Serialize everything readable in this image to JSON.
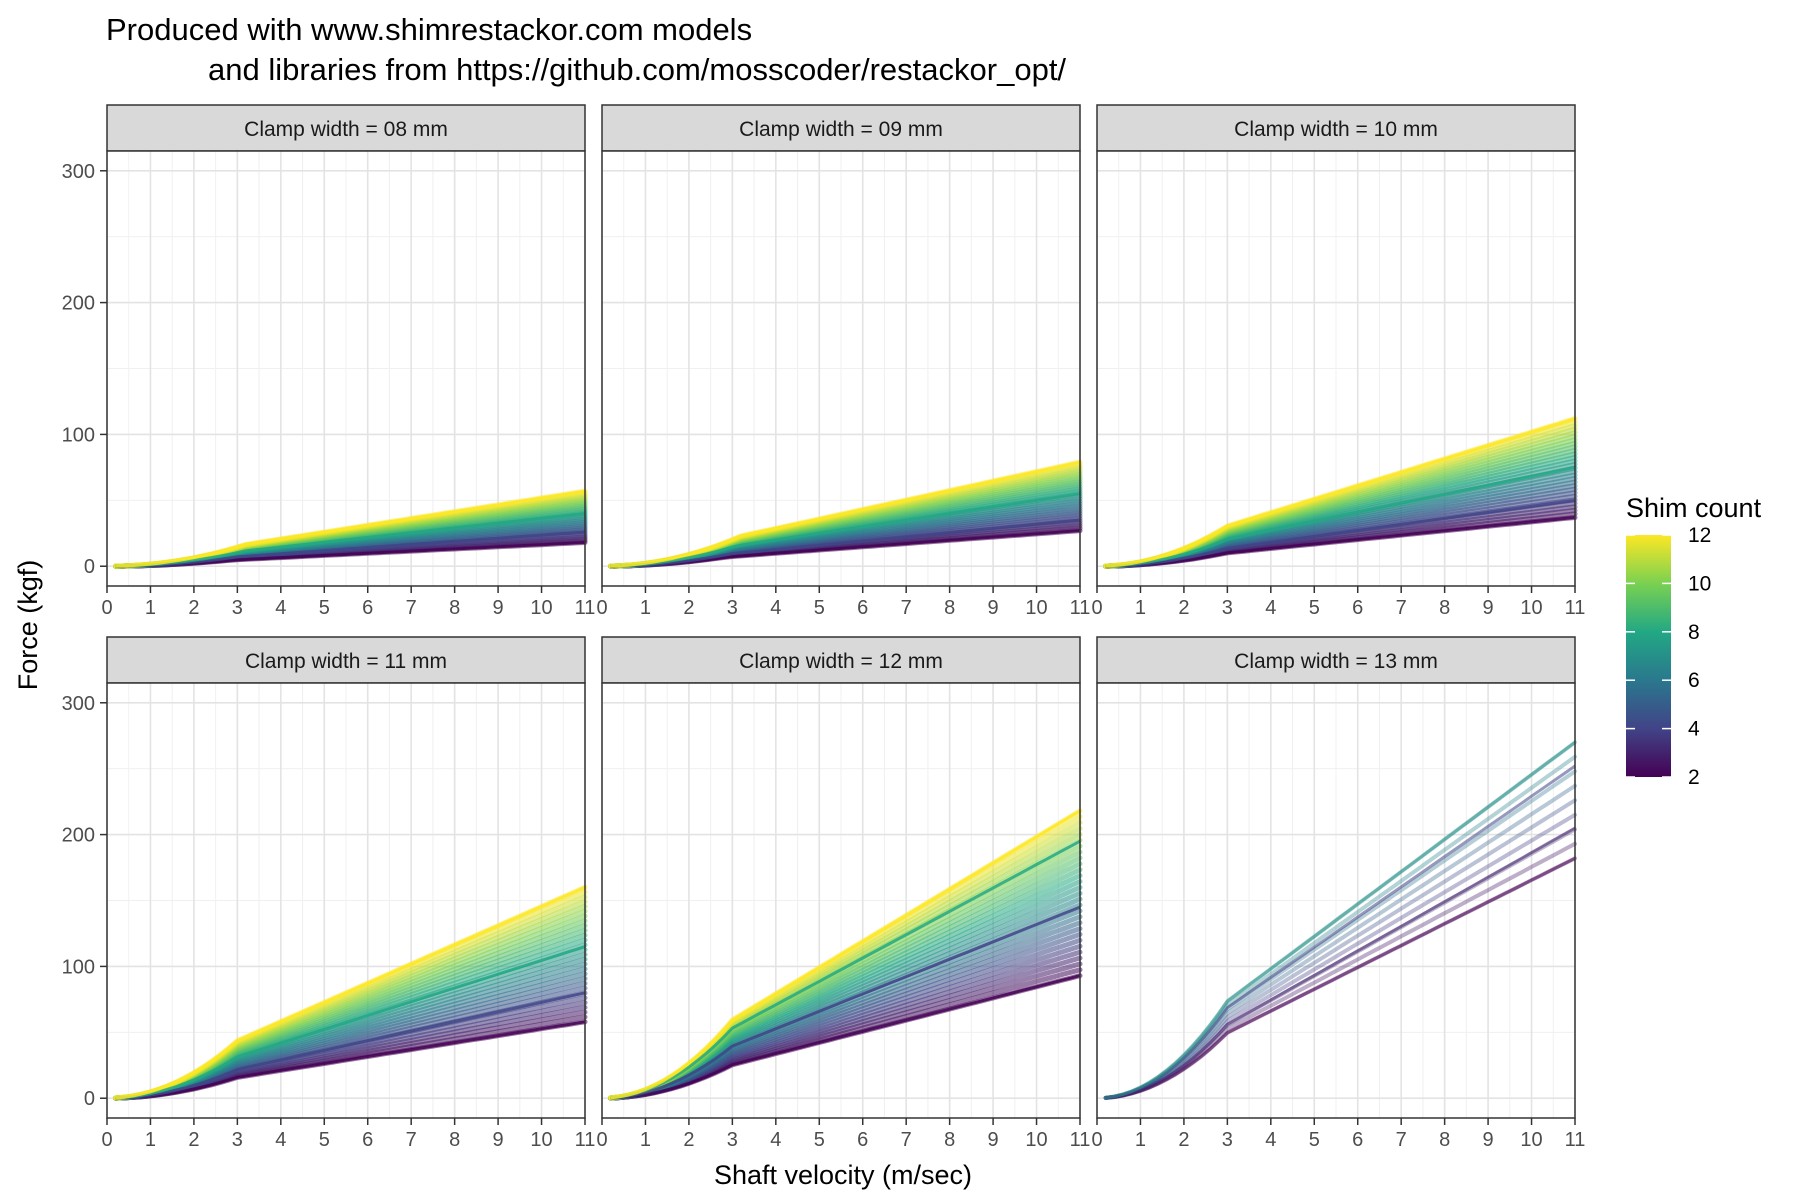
{
  "title_line1": "Produced with www.shimrestackor.com models",
  "title_line2": "and libraries from https://github.com/mosscoder/restackor_opt/",
  "chart_data": {
    "type": "line",
    "xlabel": "Shaft velocity (m/sec)",
    "ylabel": "Force (kgf)",
    "xlim": [
      0,
      11
    ],
    "ylim": [
      -15,
      315
    ],
    "x_ticks": [
      "0",
      "1",
      "2",
      "3",
      "4",
      "5",
      "6",
      "7",
      "8",
      "9",
      "10",
      "11"
    ],
    "y_ticks": [
      "0",
      "100",
      "200",
      "300"
    ],
    "grid": true,
    "legend": {
      "title": "Shim count",
      "position": "right",
      "labels": [
        "12",
        "10",
        "8",
        "6",
        "4",
        "2"
      ],
      "range": [
        2,
        12
      ],
      "colors": [
        "#fde725",
        "#7ad151",
        "#22a884",
        "#2a788e",
        "#414487",
        "#440154"
      ]
    },
    "facets": [
      {
        "label": "Clamp width =  08  mm",
        "curves": [
          {
            "shim": 12,
            "knee": 3.2,
            "end": 57
          },
          {
            "shim": 8,
            "knee": 3.2,
            "end": 40
          },
          {
            "shim": 4,
            "knee": 3.0,
            "end": 26
          },
          {
            "shim": 2,
            "knee": 2.9,
            "end": 18
          }
        ]
      },
      {
        "label": "Clamp width =  09  mm",
        "curves": [
          {
            "shim": 12,
            "knee": 3.2,
            "end": 79
          },
          {
            "shim": 8,
            "knee": 3.1,
            "end": 55
          },
          {
            "shim": 4,
            "knee": 3.0,
            "end": 35
          },
          {
            "shim": 2,
            "knee": 2.9,
            "end": 27
          }
        ]
      },
      {
        "label": "Clamp width =  10  mm",
        "curves": [
          {
            "shim": 12,
            "knee": 3.0,
            "end": 112
          },
          {
            "shim": 8,
            "knee": 3.0,
            "end": 75
          },
          {
            "shim": 4,
            "knee": 3.0,
            "end": 50
          },
          {
            "shim": 2,
            "knee": 3.0,
            "end": 37
          }
        ]
      },
      {
        "label": "Clamp width =  11  mm",
        "curves": [
          {
            "shim": 12,
            "knee": 3.0,
            "end": 160
          },
          {
            "shim": 8,
            "knee": 3.0,
            "end": 115
          },
          {
            "shim": 4,
            "knee": 3.0,
            "end": 80
          },
          {
            "shim": 2,
            "knee": 3.0,
            "end": 58
          }
        ]
      },
      {
        "label": "Clamp width =  12  mm",
        "curves": [
          {
            "shim": 12,
            "knee": 3.0,
            "end": 218
          },
          {
            "shim": 8,
            "knee": 3.0,
            "end": 195
          },
          {
            "shim": 4,
            "knee": 3.0,
            "end": 145
          },
          {
            "shim": 2,
            "knee": 3.0,
            "end": 93
          }
        ]
      },
      {
        "label": "Clamp width =  13  mm",
        "curves": [
          {
            "shim": 7,
            "knee": 3.0,
            "end": 270
          },
          {
            "shim": 4,
            "knee": 3.0,
            "end": 252
          },
          {
            "shim": 3,
            "knee": 3.0,
            "end": 205
          },
          {
            "shim": 2,
            "knee": 3.0,
            "end": 182
          }
        ]
      }
    ]
  }
}
